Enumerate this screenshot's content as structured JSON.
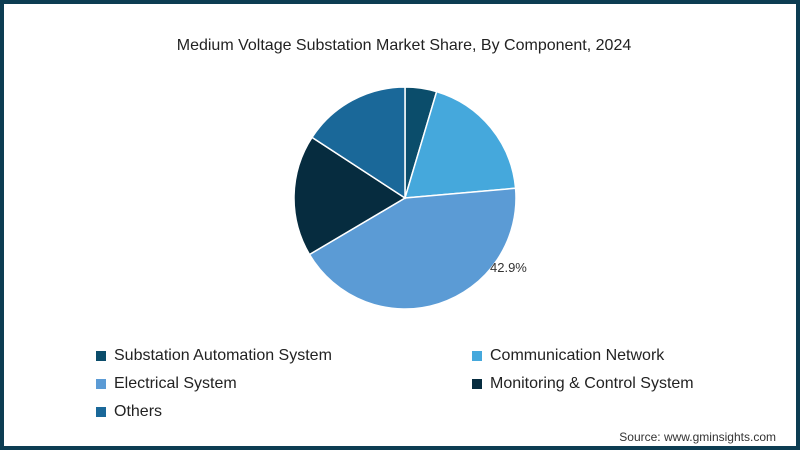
{
  "title": "Medium Voltage Substation Market Share, By Component, 2024",
  "source": "Source: www.gminsights.com",
  "colors": {
    "border": "#0d3d52"
  },
  "chart_data": {
    "type": "pie",
    "title": "Medium Voltage Substation Market Share, By Component, 2024",
    "labels": [
      "Substation Automation System",
      "Communication Network",
      "Electrical System",
      "Monitoring & Control System",
      "Others"
    ],
    "values": [
      4.6,
      19.0,
      42.9,
      17.7,
      15.8
    ],
    "colors": [
      "#0b4d6b",
      "#45a8dc",
      "#5b9bd5",
      "#062c3f",
      "#1a6899"
    ],
    "data_labels": {
      "Electrical System": "42.9%"
    },
    "legend_position": "bottom"
  },
  "legend": [
    {
      "label": "Substation Automation System",
      "color": "#0b4d6b"
    },
    {
      "label": "Communication Network",
      "color": "#45a8dc"
    },
    {
      "label": "Electrical System",
      "color": "#5b9bd5"
    },
    {
      "label": "Monitoring & Control System",
      "color": "#062c3f"
    },
    {
      "label": "Others",
      "color": "#1a6899"
    }
  ],
  "pct_label": "42.9%"
}
